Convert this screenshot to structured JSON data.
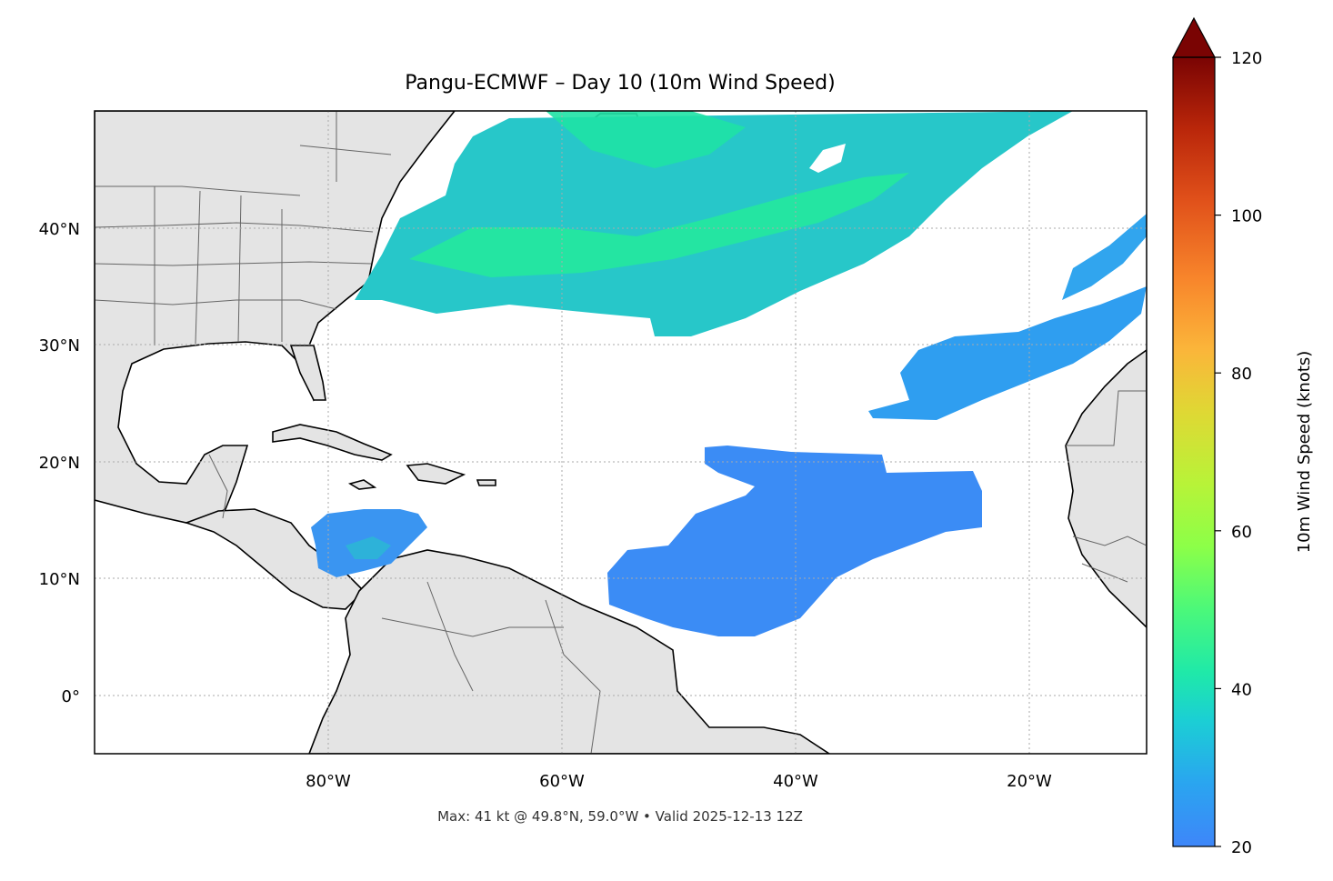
{
  "title": "Pangu-ECMWF – Day 10 (10m Wind Speed)",
  "footer": "Max: 41 kt @ 49.8°N, 59.0°W • Valid 2025-12-13 12Z",
  "map": {
    "extent_lon": [
      -100,
      -10
    ],
    "extent_lat": [
      -5,
      50
    ],
    "lat_ticks": [
      {
        "value": 40,
        "label": "40°N"
      },
      {
        "value": 30,
        "label": "30°N"
      },
      {
        "value": 20,
        "label": "20°N"
      },
      {
        "value": 10,
        "label": "10°N"
      },
      {
        "value": 0,
        "label": "0°"
      }
    ],
    "lon_ticks": [
      {
        "value": -80,
        "label": "80°W"
      },
      {
        "value": -60,
        "label": "60°W"
      },
      {
        "value": -40,
        "label": "40°W"
      },
      {
        "value": -20,
        "label": "20°W"
      }
    ],
    "gridlines": true,
    "land_color": "#e4e4e4",
    "coast_color": "#000000",
    "border_color": "#666666"
  },
  "colorbar": {
    "label": "10m Wind Speed (knots)",
    "min": 20,
    "max": 120,
    "extend": "max",
    "extend_color": "#7a0403",
    "ticks": [
      {
        "value": 20,
        "label": "20"
      },
      {
        "value": 40,
        "label": "40"
      },
      {
        "value": 60,
        "label": "60"
      },
      {
        "value": 80,
        "label": "80"
      },
      {
        "value": 100,
        "label": "100"
      },
      {
        "value": 120,
        "label": "120"
      }
    ],
    "colormap": "turbo"
  },
  "wind_max": {
    "value_kt": 41,
    "lat": 49.8,
    "lon": -59.0
  },
  "valid_time": "2025-12-13 12Z"
}
